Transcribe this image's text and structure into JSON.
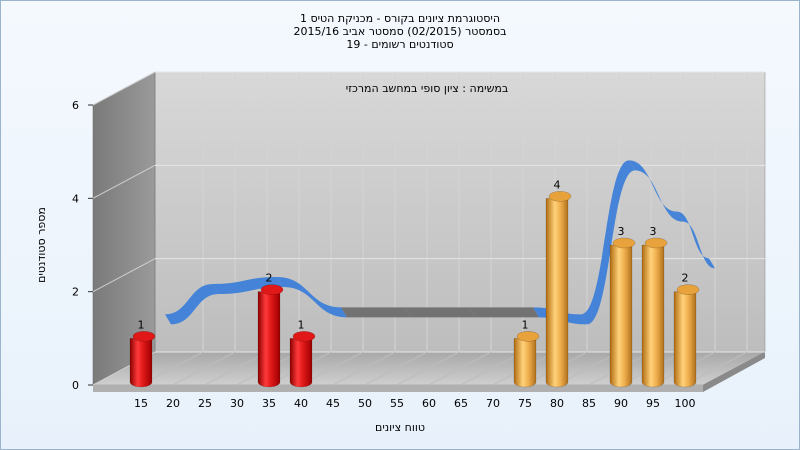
{
  "chart_data": {
    "type": "bar",
    "title_lines": [
      "היסטוגרמת ציונים בקורס - מכניקת הטיס 1",
      "בסמסטר  (02/2015)  סמסטר אביב 2015/16",
      "סטודנטים רשומים - 19"
    ],
    "subtitle": "במשימה : ציון סופי במחשב המרכזי",
    "xlabel": "טווח ציונים",
    "ylabel": "מספר סטודנטים",
    "categories": [
      "15",
      "20",
      "25",
      "30",
      "35",
      "40",
      "45",
      "50",
      "55",
      "60",
      "65",
      "70",
      "75",
      "80",
      "85",
      "90",
      "95",
      "100"
    ],
    "values": [
      1,
      0,
      0,
      0,
      2,
      1,
      0,
      0,
      0,
      0,
      0,
      0,
      1,
      4,
      0,
      3,
      3,
      2
    ],
    "data_labels": [
      "1",
      "",
      "",
      "",
      "2",
      "1",
      "",
      "",
      "",
      "",
      "",
      "",
      "1",
      "4",
      "",
      "3",
      "3",
      "2"
    ],
    "y_ticks": [
      "0",
      "2",
      "4",
      "6"
    ],
    "ylim": [
      0,
      6
    ],
    "grid": true,
    "bar_colors": {
      "failing": "#e01818",
      "passing": "#e8a23c"
    },
    "trend_line": {
      "x": [
        "17.5",
        "25",
        "35",
        "45",
        "55",
        "65",
        "75",
        "82.5",
        "90",
        "97.5",
        "102.5"
      ],
      "y": [
        1.3,
        1.95,
        2.1,
        1.45,
        1.45,
        1.45,
        1.45,
        1.3,
        4.6,
        3.5,
        2.5
      ]
    }
  }
}
